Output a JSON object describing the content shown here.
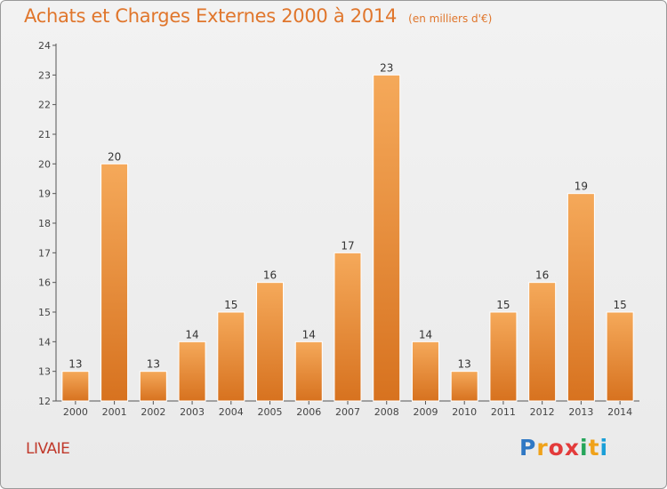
{
  "header": {
    "title": "Achats et Charges Externes 2000 à 2014",
    "unit": "(en milliers d'€)"
  },
  "footer": {
    "commune": "LIVAIE",
    "brand_letters": [
      "P",
      "r",
      "o",
      "x",
      "i",
      "t",
      "i"
    ],
    "brand_colors": [
      "#2f78c4",
      "#f0a21a",
      "#e33b3b",
      "#e33b3b",
      "#25a55a",
      "#f0a21a",
      "#1a9fd8"
    ]
  },
  "colors": {
    "bar_top": "#f5a95a",
    "bar_bottom": "#d7721f",
    "bar_edge": "#ffffff",
    "title": "#e0762c"
  },
  "chart_data": {
    "type": "bar",
    "title": "Achats et Charges Externes 2000 à 2014",
    "categories": [
      "2000",
      "2001",
      "2002",
      "2003",
      "2004",
      "2005",
      "2006",
      "2007",
      "2008",
      "2009",
      "2010",
      "2011",
      "2012",
      "2013",
      "2014"
    ],
    "values": [
      13,
      20,
      13,
      14,
      15,
      16,
      14,
      17,
      23,
      14,
      13,
      15,
      16,
      19,
      15
    ],
    "ylim": [
      12,
      24
    ],
    "yticks": [
      12,
      13,
      14,
      15,
      16,
      17,
      18,
      19,
      20,
      21,
      22,
      23,
      24
    ],
    "grid": false,
    "xlabel": "",
    "ylabel": ""
  }
}
